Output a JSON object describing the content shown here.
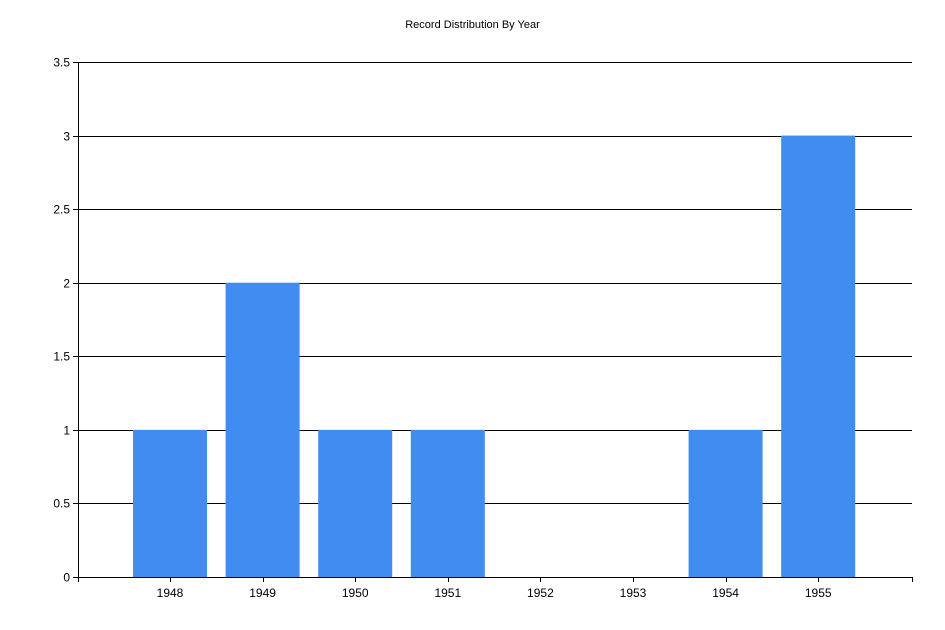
{
  "chart_data": {
    "type": "bar",
    "title": "Record Distribution By Year",
    "xlabel": "",
    "ylabel": "",
    "categories": [
      "1948",
      "1949",
      "1950",
      "1951",
      "1952",
      "1953",
      "1954",
      "1955"
    ],
    "values": [
      1,
      2,
      1,
      1,
      0,
      0,
      1,
      3
    ],
    "ylim": [
      0,
      3.5
    ],
    "yticks": [
      "0",
      "0.5",
      "1",
      "1.5",
      "2",
      "2.5",
      "3",
      "3.5"
    ],
    "grid": true,
    "bar_color": "#418CF0"
  }
}
